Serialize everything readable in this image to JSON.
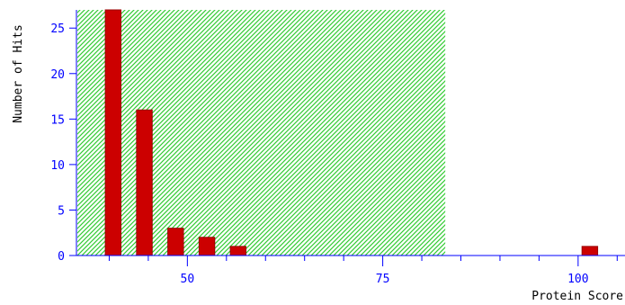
{
  "chart_data": {
    "type": "bar",
    "title": "",
    "xlabel": "Protein Score",
    "ylabel": "Number of Hits",
    "x_ticks": [
      25,
      50,
      75,
      100
    ],
    "x_tick_labels": [
      "50",
      "75",
      "100"
    ],
    "y_ticks": [
      0,
      5,
      10,
      15,
      20,
      25
    ],
    "y_tick_labels": [
      "0",
      "5",
      "10",
      "15",
      "20",
      "25"
    ],
    "xlim": [
      35,
      106
    ],
    "ylim": [
      0,
      27
    ],
    "grid": false,
    "legend": "none",
    "threshold_region": {
      "from": 35,
      "to": 83,
      "pattern": "diagonal-hatch",
      "color": "#33cc33"
    },
    "bars": [
      {
        "x": 40.5,
        "value": 27
      },
      {
        "x": 44.5,
        "value": 16
      },
      {
        "x": 48.5,
        "value": 3
      },
      {
        "x": 52.5,
        "value": 2
      },
      {
        "x": 56.5,
        "value": 1
      },
      {
        "x": 101.5,
        "value": 1
      }
    ],
    "bar_width": 2.0,
    "colors": {
      "bar": "#cc0000",
      "bar_edge": "#990000",
      "axis": "#0000ff",
      "tick_label": "#0000ff",
      "axis_title": "#000000"
    }
  }
}
